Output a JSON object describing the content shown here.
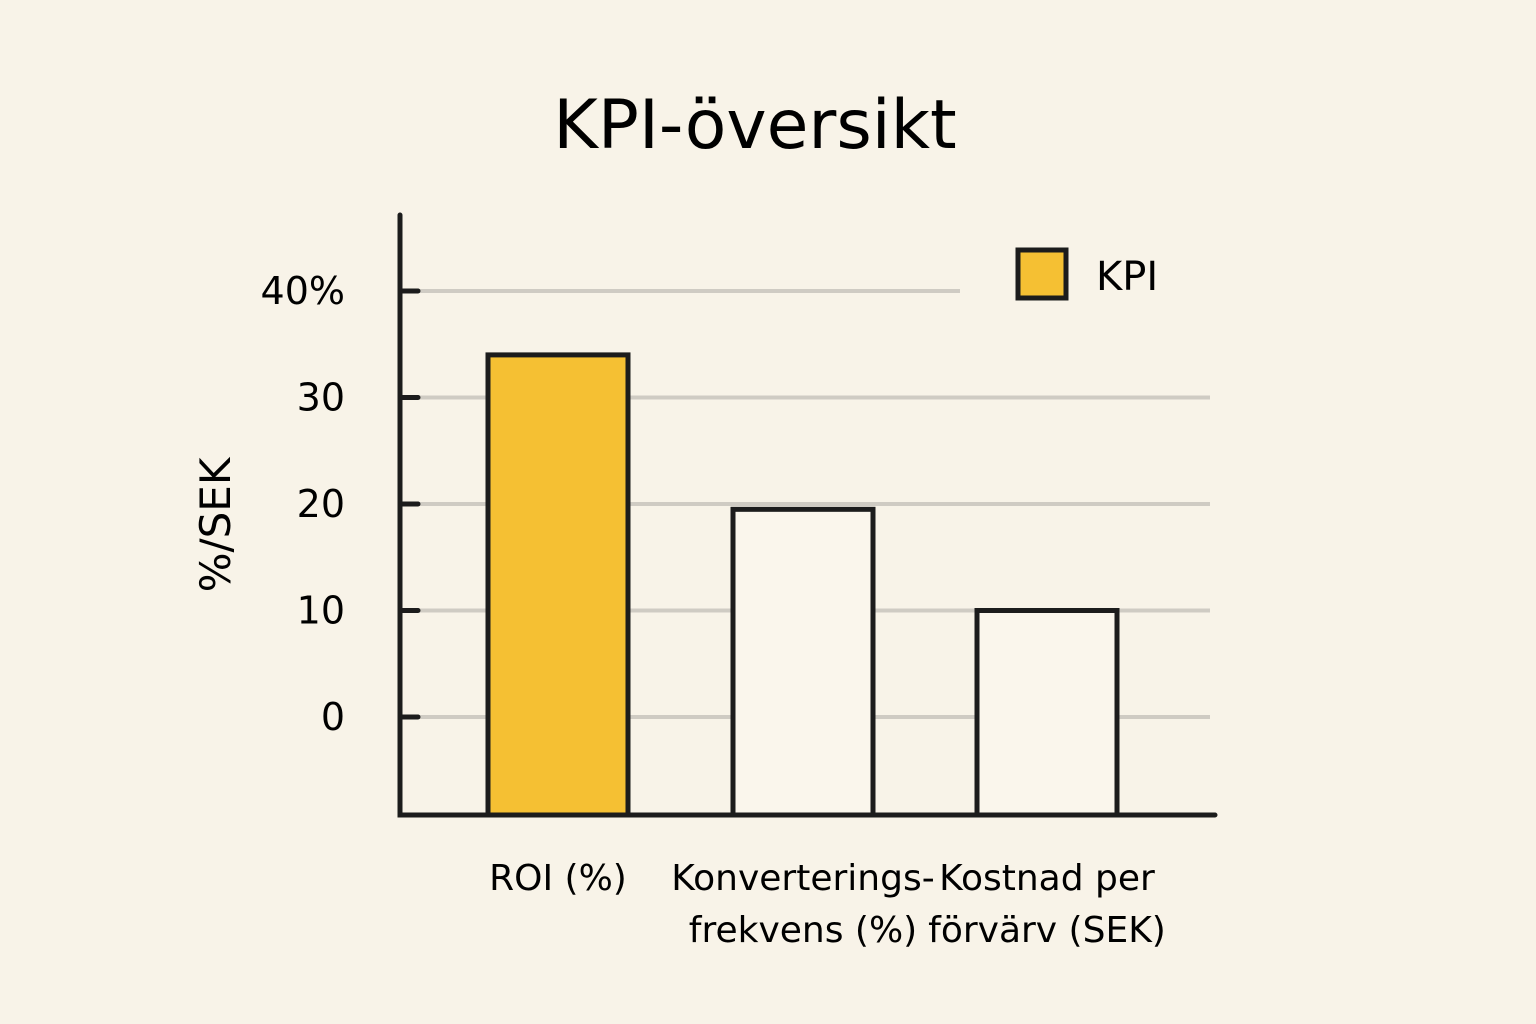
{
  "chart_data": {
    "type": "bar",
    "title": "KPI-översikt",
    "ylabel": "%/SEK",
    "xlabel": "",
    "ylim": [
      0,
      40
    ],
    "yticks": [
      0,
      10,
      20,
      30,
      40
    ],
    "ytick_labels": [
      "0",
      "10",
      "20",
      "30",
      "40%"
    ],
    "grid": true,
    "legend_position": "top-right",
    "categories": [
      [
        "ROI (%)"
      ],
      [
        "Konverterings-",
        "frekvens (%)"
      ],
      [
        "Kostnad per",
        "förvärv (SEK)"
      ]
    ],
    "series": [
      {
        "name": "KPI",
        "values": [
          34,
          19.5,
          10
        ]
      }
    ],
    "bar_fills": [
      "#f5c033",
      "#faf6ec",
      "#faf6ec"
    ],
    "legend": [
      {
        "label": "KPI",
        "color": "#f5c033"
      }
    ]
  }
}
